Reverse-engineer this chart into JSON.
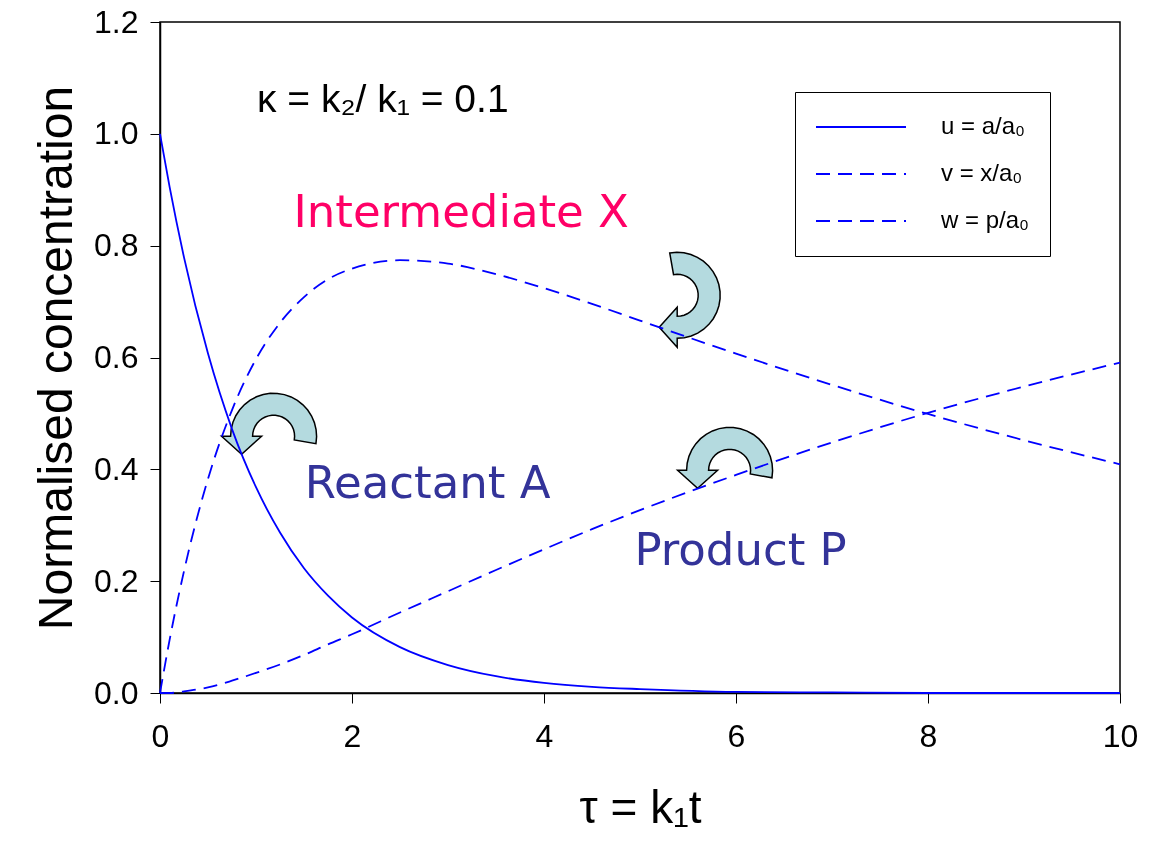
{
  "chart_data": {
    "type": "line",
    "xlabel": "τ = k₁t",
    "ylabel": "Normalised concentration",
    "x": [
      0,
      0.1,
      0.25,
      0.5,
      0.75,
      1,
      1.25,
      1.5,
      1.75,
      2,
      2.5,
      3,
      3.5,
      4,
      4.5,
      5,
      6,
      7,
      8,
      9,
      10
    ],
    "xlim": [
      0,
      10
    ],
    "xticks": [
      0,
      2,
      4,
      6,
      8,
      10
    ],
    "ylim": [
      0,
      1.2
    ],
    "yticks": [
      {
        "value": 0,
        "label": "0.0"
      },
      0.2,
      0.4,
      0.6,
      0.8,
      {
        "value": 1,
        "label": "1.0"
      },
      1.2
    ],
    "grid": false,
    "legend": "top right",
    "series": [
      {
        "name": "u = a/a₀",
        "color": "#0000ff",
        "line_style": "solid",
        "values": [
          1.0,
          0.905,
          0.779,
          0.607,
          0.472,
          0.368,
          0.287,
          0.223,
          0.174,
          0.135,
          0.082,
          0.05,
          0.03,
          0.018,
          0.011,
          0.007,
          0.002,
          0.001,
          0.0,
          0.0,
          0.0
        ]
      },
      {
        "name": "v = x/a₀",
        "color": "#0000ff",
        "line_style": "dashed",
        "values": [
          0,
          0.095,
          0.218,
          0.383,
          0.506,
          0.597,
          0.662,
          0.708,
          0.74,
          0.759,
          0.774,
          0.768,
          0.749,
          0.724,
          0.696,
          0.666,
          0.607,
          0.551,
          0.499,
          0.452,
          0.409
        ]
      },
      {
        "name": "w = p/a₀",
        "color": "#0000ff",
        "line_style": "dashed",
        "values": [
          0,
          0.0,
          0.003,
          0.01,
          0.022,
          0.036,
          0.051,
          0.068,
          0.087,
          0.105,
          0.144,
          0.182,
          0.22,
          0.257,
          0.293,
          0.327,
          0.39,
          0.448,
          0.501,
          0.548,
          0.591
        ]
      }
    ],
    "annotations": [
      "κ = k₂/ k₁ = 0.1",
      {
        "text": "Intermediate X",
        "x": 5.2,
        "y": 0.654
      },
      {
        "text": "Reactant A",
        "x": 0.85,
        "y": 0.427
      },
      {
        "text": "Product P",
        "x": 5.6,
        "y": 0.366
      }
    ]
  }
}
